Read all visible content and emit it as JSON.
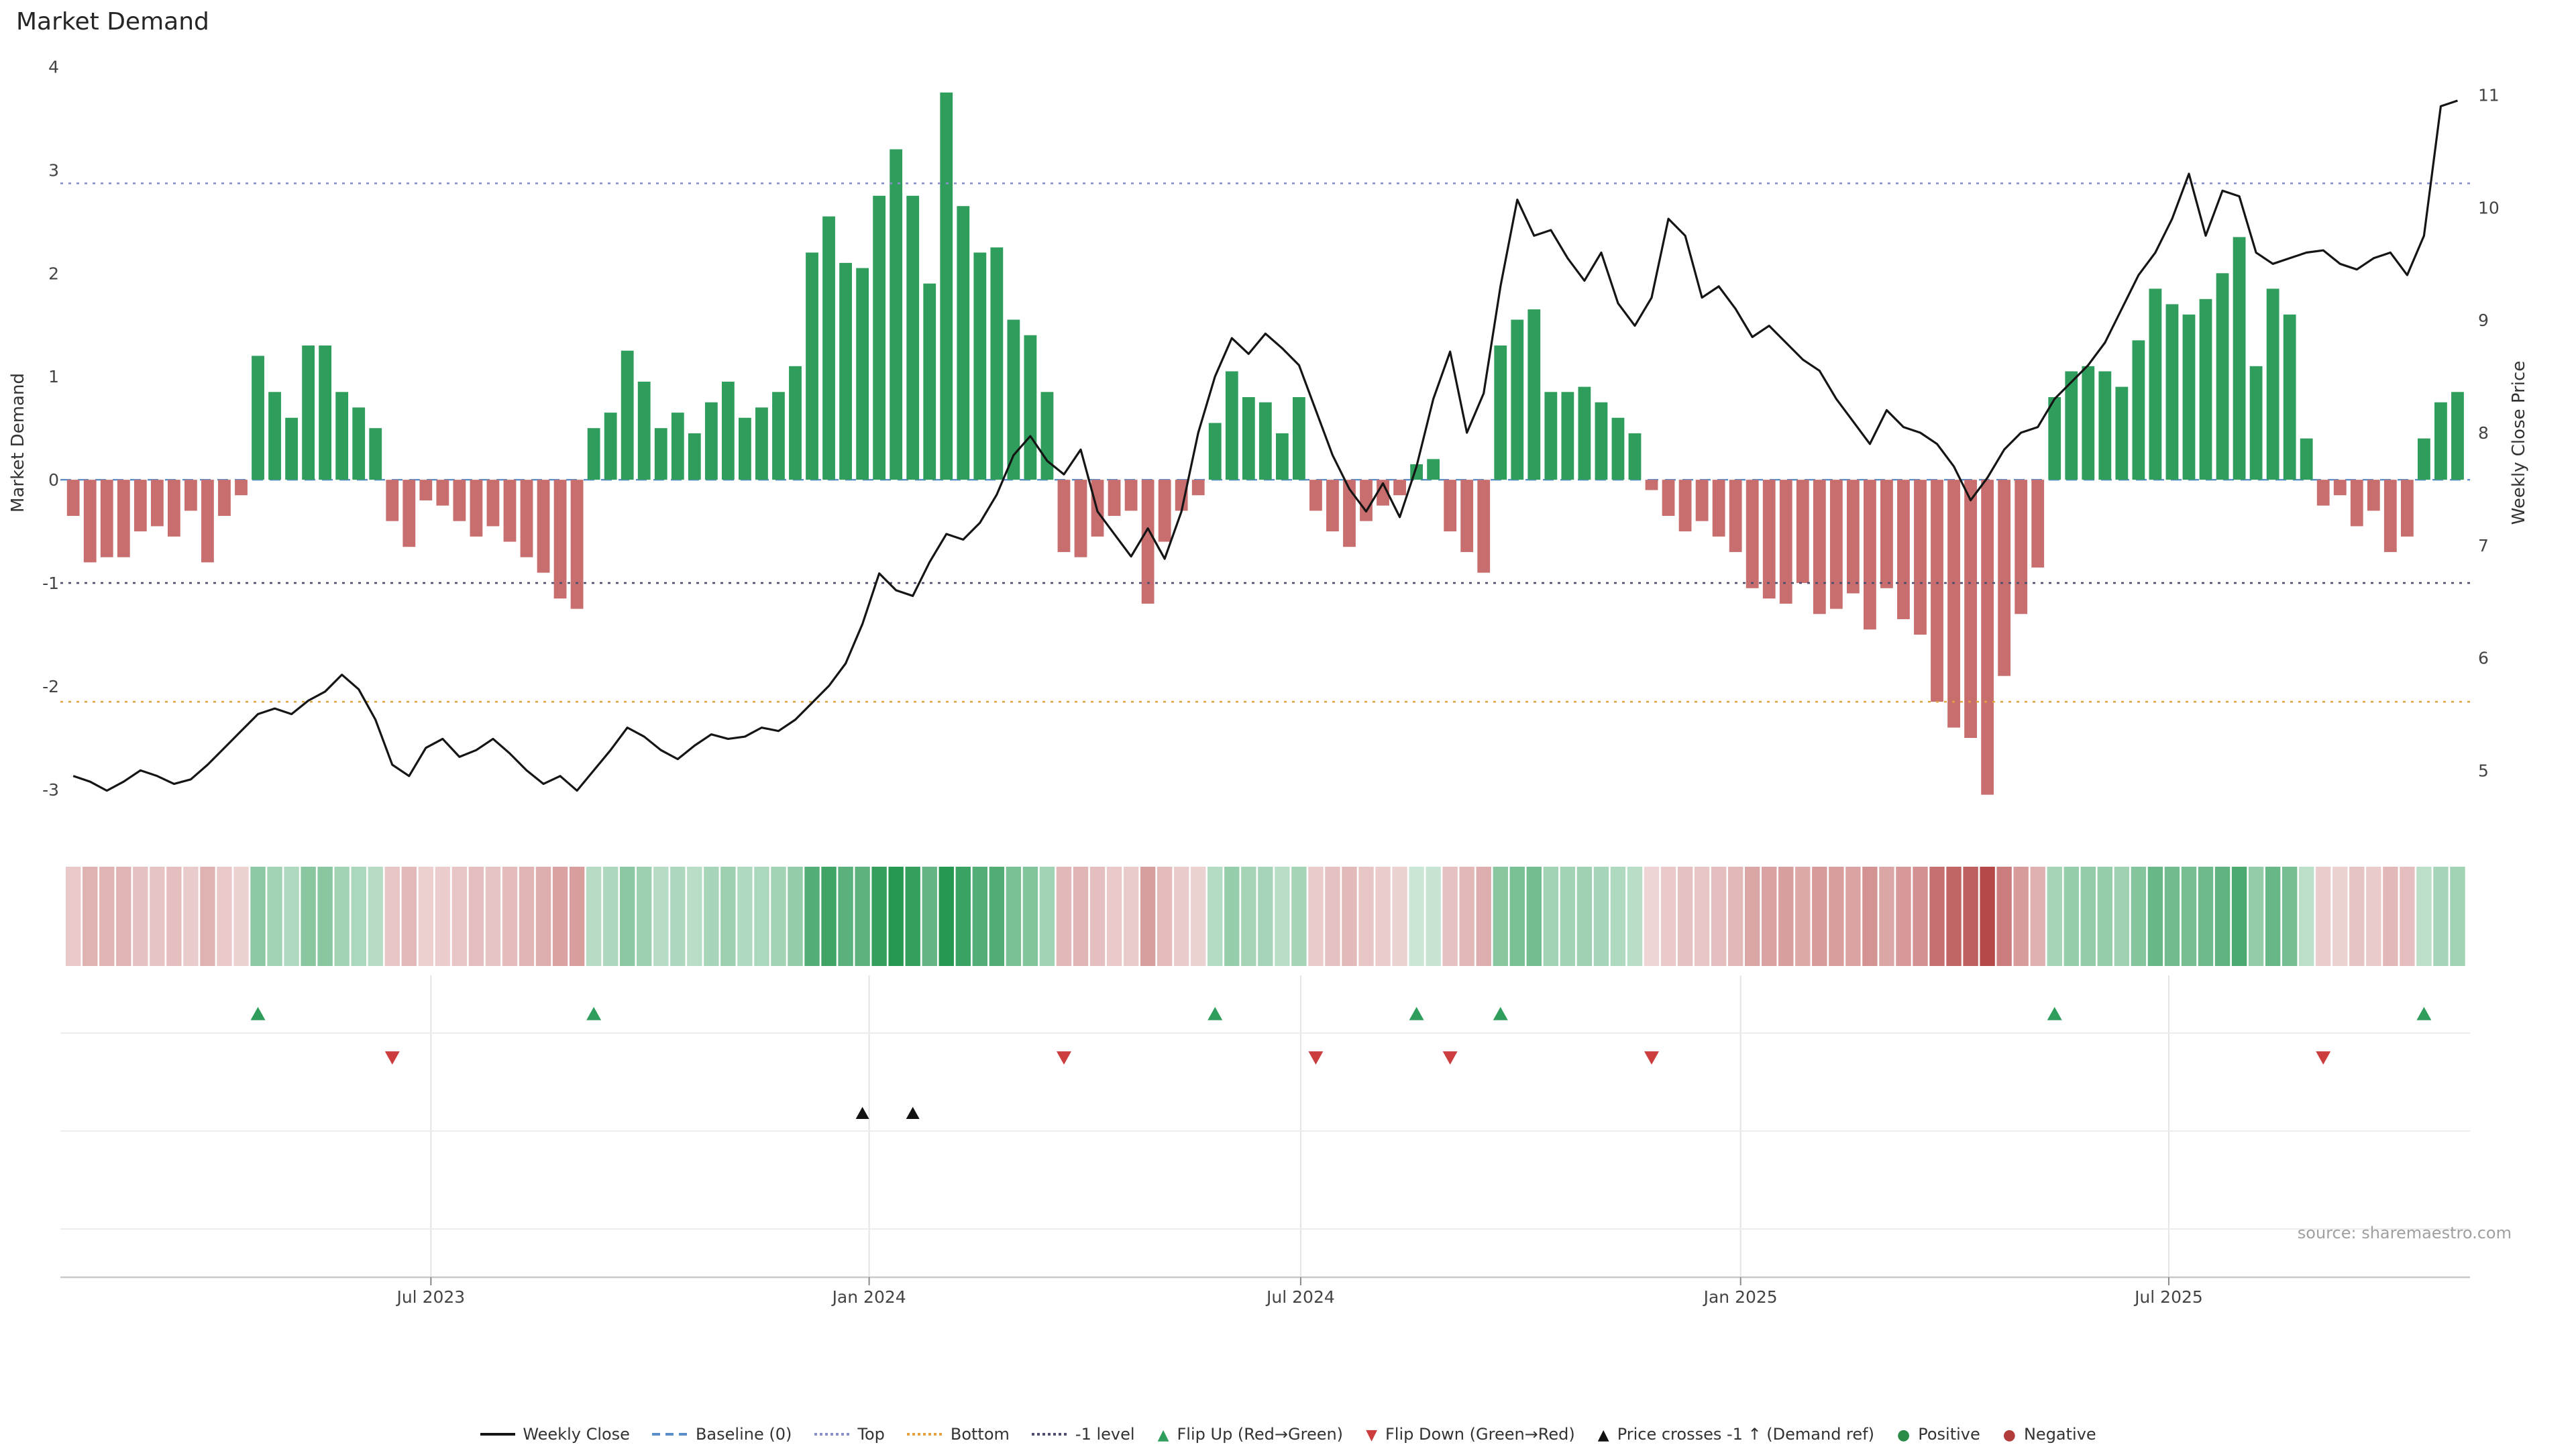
{
  "title": "Market Demand",
  "source": "source: sharemaestro.com",
  "axes": {
    "left_label": "Market Demand",
    "right_label": "Weekly Close Price",
    "left_ticks": [
      4,
      3,
      2,
      1,
      0,
      -1,
      -2,
      -3
    ],
    "right_ticks": [
      11,
      10,
      9,
      8,
      7,
      6,
      5
    ],
    "x_ticks": [
      {
        "label": "Jul 2023",
        "week": 21.3
      },
      {
        "label": "Jan 2024",
        "week": 47.4
      },
      {
        "label": "Jul 2024",
        "week": 73.1
      },
      {
        "label": "Jan 2025",
        "week": 99.3
      },
      {
        "label": "Jul 2025",
        "week": 124.8
      }
    ]
  },
  "chart_data": {
    "type": "bar",
    "subtype": "bar+line combo with heatmap strip and event markers",
    "title": "Market Demand",
    "xlabel": "",
    "ylabel_left": "Market Demand",
    "ylabel_right": "Weekly Close Price",
    "x_unit": "weekly index (approx Feb 2023 - Oct 2025)",
    "n_points": 143,
    "ylim_left": [
      -3.3,
      4.05
    ],
    "ylim_right": [
      4.6,
      11.2
    ],
    "grid": false,
    "legend_position": "bottom-center",
    "series": [
      {
        "name": "Market Demand",
        "type": "bar",
        "values": [
          -0.35,
          -0.8,
          -0.75,
          -0.75,
          -0.5,
          -0.45,
          -0.55,
          -0.3,
          -0.8,
          -0.35,
          -0.15,
          1.2,
          0.85,
          0.6,
          1.3,
          1.3,
          0.85,
          0.7,
          0.5,
          -0.4,
          -0.65,
          -0.2,
          -0.25,
          -0.4,
          -0.55,
          -0.45,
          -0.6,
          -0.75,
          -0.9,
          -1.15,
          -1.25,
          0.5,
          0.65,
          1.25,
          0.95,
          0.5,
          0.65,
          0.45,
          0.75,
          0.95,
          0.6,
          0.7,
          0.85,
          1.1,
          2.2,
          2.55,
          2.1,
          2.05,
          2.75,
          3.2,
          2.75,
          1.9,
          3.75,
          2.65,
          2.2,
          2.25,
          1.55,
          1.4,
          0.85,
          -0.7,
          -0.75,
          -0.55,
          -0.35,
          -0.3,
          -1.2,
          -0.6,
          -0.3,
          -0.15,
          0.55,
          1.05,
          0.8,
          0.75,
          0.45,
          0.8,
          -0.3,
          -0.5,
          -0.65,
          -0.4,
          -0.25,
          -0.15,
          0.15,
          0.2,
          -0.5,
          -0.7,
          -0.9,
          1.3,
          1.55,
          1.65,
          0.85,
          0.85,
          0.9,
          0.75,
          0.6,
          0.45,
          -0.1,
          -0.35,
          -0.5,
          -0.4,
          -0.55,
          -0.7,
          -1.05,
          -1.15,
          -1.2,
          -1.0,
          -1.3,
          -1.25,
          -1.1,
          -1.45,
          -1.05,
          -1.35,
          -1.5,
          -2.15,
          -2.4,
          -2.5,
          -3.05,
          -1.9,
          -1.3,
          -0.85,
          0.8,
          1.05,
          1.1,
          1.05,
          0.9,
          1.35,
          1.85,
          1.7,
          1.6,
          1.75,
          2.0,
          2.35,
          1.1,
          1.85,
          1.6,
          0.4,
          -0.25,
          -0.15,
          -0.45,
          -0.3,
          -0.7,
          -0.55,
          0.4,
          0.75,
          0.85
        ]
      },
      {
        "name": "Weekly Close",
        "type": "line",
        "values": [
          4.95,
          4.9,
          4.82,
          4.9,
          5.0,
          4.95,
          4.88,
          4.92,
          5.05,
          5.2,
          5.35,
          5.5,
          5.55,
          5.5,
          5.62,
          5.7,
          5.85,
          5.72,
          5.45,
          5.05,
          4.95,
          5.2,
          5.28,
          5.12,
          5.18,
          5.28,
          5.15,
          5.0,
          4.88,
          4.95,
          4.82,
          5.0,
          5.18,
          5.38,
          5.3,
          5.18,
          5.1,
          5.22,
          5.32,
          5.28,
          5.3,
          5.38,
          5.35,
          5.45,
          5.6,
          5.75,
          5.95,
          6.3,
          6.75,
          6.6,
          6.55,
          6.85,
          7.1,
          7.05,
          7.2,
          7.45,
          7.8,
          7.97,
          7.75,
          7.63,
          7.85,
          7.3,
          7.1,
          6.9,
          7.15,
          6.88,
          7.3,
          8.0,
          8.5,
          8.84,
          8.7,
          8.88,
          8.75,
          8.6,
          8.2,
          7.8,
          7.5,
          7.3,
          7.55,
          7.25,
          7.7,
          8.3,
          8.72,
          8.0,
          8.35,
          9.3,
          10.07,
          9.75,
          9.8,
          9.55,
          9.35,
          9.6,
          9.15,
          8.95,
          9.2,
          9.9,
          9.75,
          9.2,
          9.3,
          9.1,
          8.85,
          8.95,
          8.8,
          8.65,
          8.55,
          8.3,
          8.1,
          7.9,
          8.2,
          8.05,
          8.0,
          7.9,
          7.7,
          7.4,
          7.6,
          7.85,
          8.0,
          8.05,
          8.3,
          8.45,
          8.6,
          8.8,
          9.1,
          9.4,
          9.6,
          9.9,
          10.3,
          9.75,
          10.15,
          10.1,
          9.6,
          9.5,
          9.55,
          9.6,
          9.62,
          9.5,
          9.45,
          9.55,
          9.6,
          9.4,
          9.75,
          10.9,
          10.95
        ]
      }
    ],
    "reference_lines": {
      "baseline": 0,
      "top": 2.87,
      "bottom": -2.15,
      "minus1": -1
    },
    "heatmap_strip": "colored from Market Demand values (green positive, red negative, intensity by magnitude)",
    "markers": {
      "flip_up_weeks": [
        11,
        31,
        68,
        80,
        85,
        118,
        140
      ],
      "flip_down_weeks": [
        19,
        59,
        74,
        82,
        94,
        134
      ],
      "price_cross_weeks": [
        47,
        50
      ]
    }
  },
  "colors": {
    "positive_bar": "#2f9e5c",
    "negative_bar": "#c96e6e",
    "heat_pos": "#22964f",
    "heat_neg": "#b44444",
    "price_line": "#151515",
    "baseline": "#5b8fc9",
    "top": "#8a8fc9",
    "bottom": "#e2a33f",
    "minus1": "#4d4d6e",
    "flip_up": "#2f9e5c",
    "flip_down": "#cc3d3d",
    "price_cross": "#111111"
  },
  "legend": {
    "items": [
      {
        "label": "Weekly Close",
        "type": "line",
        "color": "#151515",
        "icon": "weekly-close-line"
      },
      {
        "label": "Baseline (0)",
        "type": "dashed",
        "color": "#5b8fc9",
        "icon": "baseline-dash"
      },
      {
        "label": "Top",
        "type": "dotted",
        "color": "#8a8fc9",
        "icon": "top-dot"
      },
      {
        "label": "Bottom",
        "type": "dotted",
        "color": "#e2a33f",
        "icon": "bottom-dot"
      },
      {
        "label": "-1 level",
        "type": "dotted",
        "color": "#4d4d6e",
        "icon": "minus1-dot"
      },
      {
        "label": "Flip Up (Red→Green)",
        "type": "glyph",
        "glyph": "▲",
        "color": "#2f9e5c",
        "icon": "flip-up-triangle-icon"
      },
      {
        "label": "Flip Down (Green→Red)",
        "type": "glyph",
        "glyph": "▼",
        "color": "#cc3d3d",
        "icon": "flip-down-triangle-icon"
      },
      {
        "label": "Price crosses -1 ↑ (Demand ref)",
        "type": "glyph",
        "glyph": "▲",
        "color": "#111111",
        "icon": "price-cross-triangle-icon"
      },
      {
        "label": "Positive",
        "type": "glyph",
        "glyph": "●",
        "color": "#2a8c46",
        "icon": "positive-dot-icon"
      },
      {
        "label": "Negative",
        "type": "glyph",
        "glyph": "●",
        "color": "#b23b3b",
        "icon": "negative-dot-icon"
      }
    ]
  }
}
